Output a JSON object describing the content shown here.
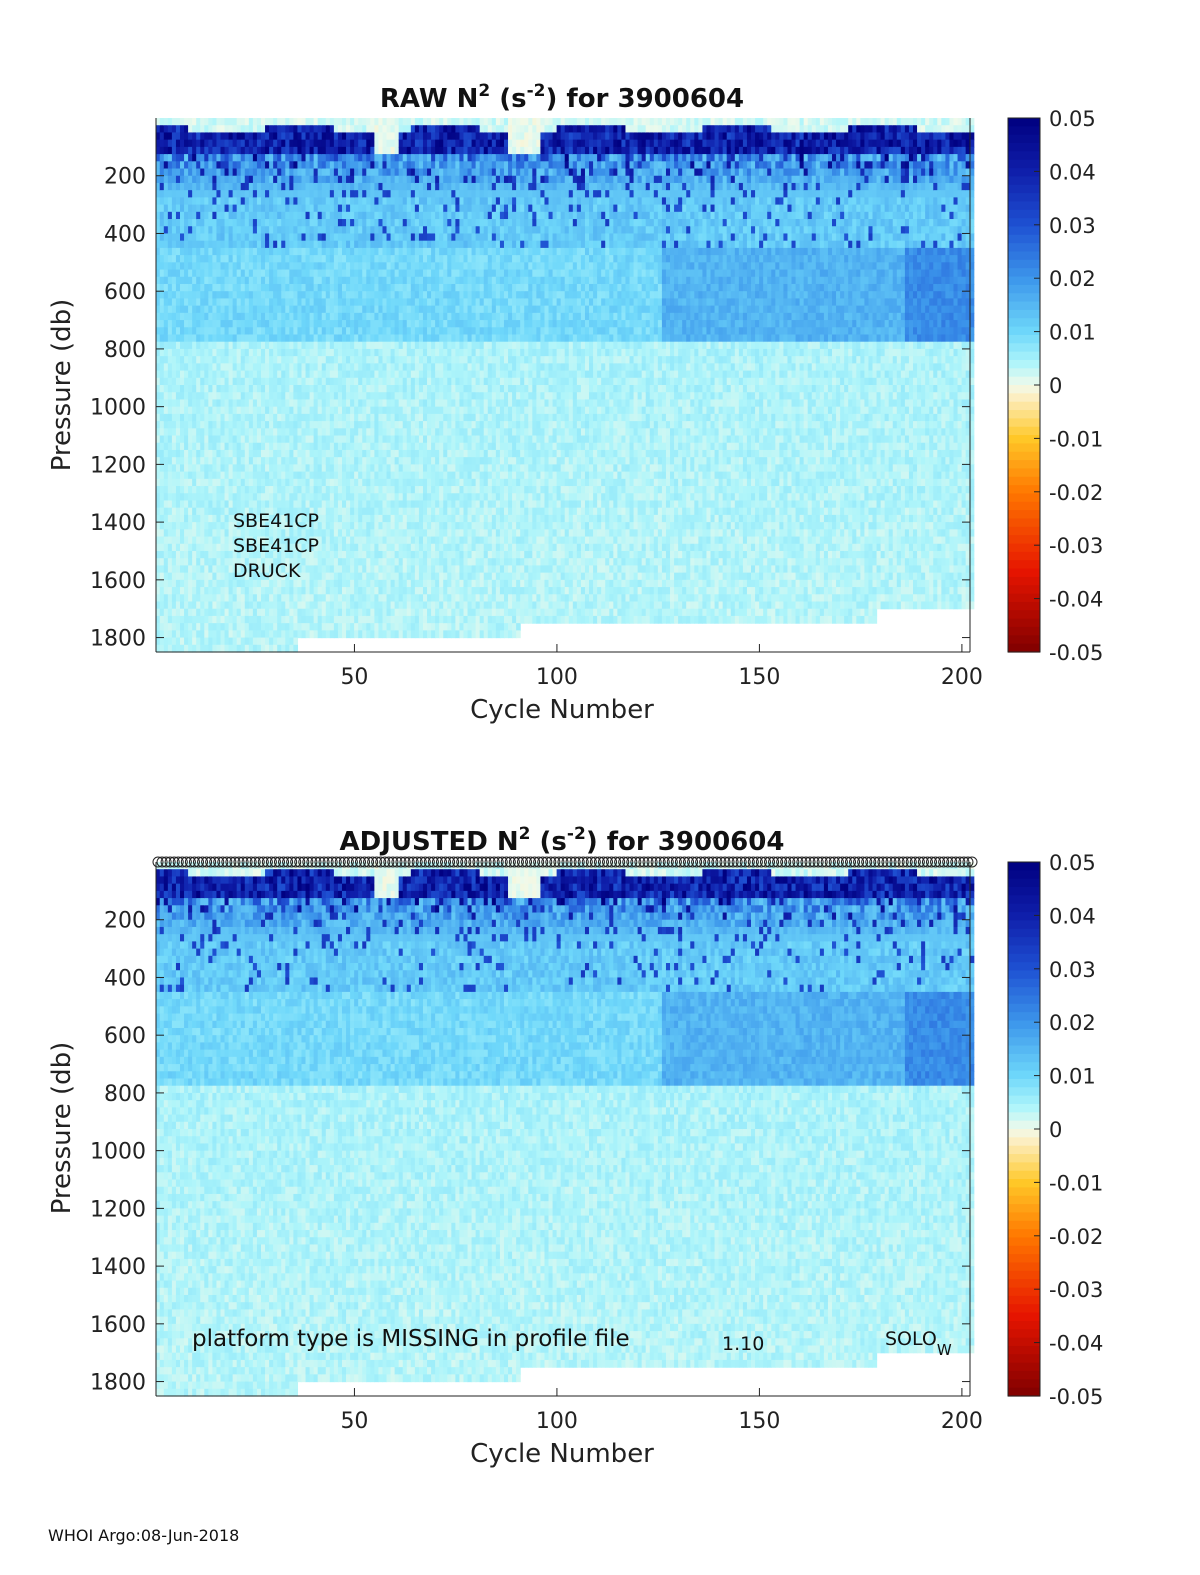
{
  "chart_data": [
    {
      "type": "heatmap",
      "title": "RAW N² (s⁻²) for 3900604",
      "title_parts": {
        "main": "RAW N",
        "sup1": "2",
        "mid": " (s",
        "sup2": "-2",
        "end": ") for 3900604"
      },
      "xlabel": "Cycle Number",
      "ylabel": "Pressure (db)",
      "xlim": [
        1,
        202
      ],
      "ylim": [
        1850,
        0
      ],
      "xticks": [
        50,
        100,
        150,
        200
      ],
      "yticks": [
        200,
        400,
        600,
        800,
        1000,
        1200,
        1400,
        1600,
        1800
      ],
      "colorbar": {
        "range": [
          -0.05,
          0.05
        ],
        "ticks": [
          "0.05",
          "0.04",
          "0.03",
          "0.02",
          "0.01",
          "0",
          "-0.01",
          "-0.02",
          "-0.03",
          "-0.04",
          "-0.05"
        ]
      },
      "surface_mixed_layer_cycles": [
        55,
        60,
        88,
        95,
        138,
        165,
        177,
        200
      ],
      "deep_coverage": [
        {
          "cycles": [
            1,
            35
          ],
          "max_pressure": 1850
        },
        {
          "cycles": [
            36,
            90
          ],
          "max_pressure": 1800
        },
        {
          "cycles": [
            91,
            178
          ],
          "max_pressure": 1750
        },
        {
          "cycles": [
            179,
            202
          ],
          "max_pressure": 1700
        }
      ],
      "annotations": [
        "SBE41CP",
        "SBE41CP",
        "DRUCK"
      ]
    },
    {
      "type": "heatmap",
      "title": "ADJUSTED N² (s⁻²) for 3900604",
      "title_parts": {
        "main": "ADJUSTED N",
        "sup1": "2",
        "mid": " (s",
        "sup2": "-2",
        "end": ") for 3900604"
      },
      "xlabel": "Cycle Number",
      "ylabel": "Pressure (db)",
      "xlim": [
        1,
        202
      ],
      "ylim": [
        1850,
        0
      ],
      "xticks": [
        50,
        100,
        150,
        200
      ],
      "yticks": [
        200,
        400,
        600,
        800,
        1000,
        1200,
        1400,
        1600,
        1800
      ],
      "colorbar": {
        "range": [
          -0.05,
          0.05
        ],
        "ticks": [
          "0.05",
          "0.04",
          "0.03",
          "0.02",
          "0.01",
          "0",
          "-0.01",
          "-0.02",
          "-0.03",
          "-0.04",
          "-0.05"
        ]
      },
      "qc_markers": {
        "symbol": "circle",
        "pressure": 0,
        "count": 202
      },
      "annotations": {
        "platform": "platform type is MISSING in profile file",
        "version": "1.10",
        "float_type": "SOLO",
        "float_type_sub": "W"
      }
    }
  ],
  "footer": "WHOI Argo:08-Jun-2018"
}
